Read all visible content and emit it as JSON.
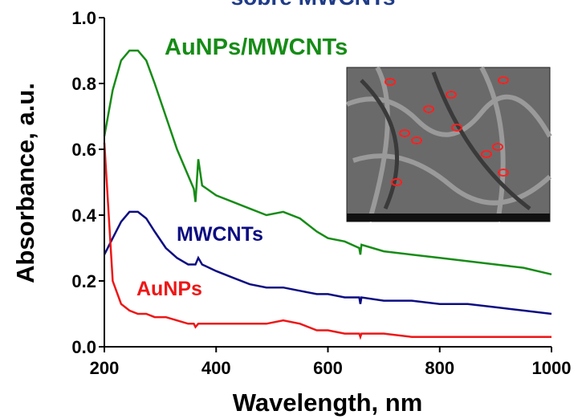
{
  "chart_data": {
    "type": "line",
    "title": "sobre MWCNTs",
    "x_label": "Wavelength, nm",
    "y_label": "Absorbance, a.u.",
    "x": [
      200,
      215,
      230,
      245,
      260,
      275,
      290,
      310,
      330,
      350,
      360,
      363,
      368,
      375,
      400,
      430,
      460,
      490,
      520,
      550,
      580,
      600,
      630,
      656,
      658,
      660,
      700,
      750,
      800,
      850,
      900,
      950,
      1000
    ],
    "series": [
      {
        "name": "AuNPs/MWCNTs",
        "color": "#168c16",
        "values": [
          0.64,
          0.78,
          0.87,
          0.9,
          0.9,
          0.87,
          0.8,
          0.7,
          0.6,
          0.52,
          0.48,
          0.44,
          0.57,
          0.49,
          0.46,
          0.44,
          0.42,
          0.4,
          0.41,
          0.39,
          0.35,
          0.33,
          0.32,
          0.3,
          0.28,
          0.31,
          0.29,
          0.28,
          0.27,
          0.26,
          0.25,
          0.24,
          0.22
        ]
      },
      {
        "name": "MWCNTs",
        "color": "#0c0c82",
        "values": [
          0.28,
          0.33,
          0.38,
          0.41,
          0.41,
          0.39,
          0.35,
          0.3,
          0.27,
          0.25,
          0.25,
          0.25,
          0.27,
          0.25,
          0.23,
          0.21,
          0.19,
          0.18,
          0.18,
          0.17,
          0.16,
          0.16,
          0.15,
          0.15,
          0.13,
          0.15,
          0.14,
          0.14,
          0.13,
          0.13,
          0.12,
          0.11,
          0.1
        ]
      },
      {
        "name": "AuNPs",
        "color": "#ee1616",
        "values": [
          0.62,
          0.2,
          0.13,
          0.11,
          0.1,
          0.1,
          0.09,
          0.09,
          0.08,
          0.07,
          0.07,
          0.06,
          0.07,
          0.07,
          0.07,
          0.07,
          0.07,
          0.07,
          0.08,
          0.07,
          0.05,
          0.05,
          0.04,
          0.04,
          0.03,
          0.04,
          0.04,
          0.03,
          0.03,
          0.03,
          0.03,
          0.03,
          0.03
        ]
      }
    ],
    "xlim": [
      200,
      1000
    ],
    "xticks": [
      200,
      400,
      600,
      800,
      1000
    ],
    "ylim": [
      0,
      1
    ],
    "yticks": [
      {
        "value": 0,
        "label": "0.0"
      },
      0.2,
      0.4,
      0.6,
      0.8,
      {
        "value": 1,
        "label": "1.0"
      }
    ]
  }
}
